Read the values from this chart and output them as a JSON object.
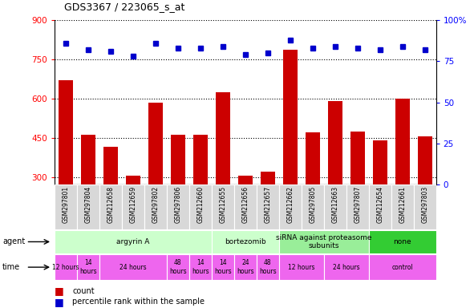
{
  "title": "GDS3367 / 223065_s_at",
  "samples": [
    "GSM297801",
    "GSM297804",
    "GSM212658",
    "GSM212659",
    "GSM297802",
    "GSM297806",
    "GSM212660",
    "GSM212655",
    "GSM212656",
    "GSM212657",
    "GSM212662",
    "GSM297805",
    "GSM212663",
    "GSM297807",
    "GSM212654",
    "GSM212661",
    "GSM297803"
  ],
  "counts": [
    670,
    460,
    415,
    305,
    585,
    460,
    460,
    625,
    305,
    320,
    785,
    470,
    590,
    475,
    440,
    600,
    455
  ],
  "percentiles": [
    86,
    82,
    81,
    78,
    86,
    83,
    83,
    84,
    79,
    80,
    88,
    83,
    84,
    83,
    82,
    84,
    82
  ],
  "ylim_left": [
    270,
    900
  ],
  "ylim_right": [
    0,
    100
  ],
  "yticks_left": [
    300,
    450,
    600,
    750,
    900
  ],
  "yticks_right": [
    0,
    25,
    50,
    75,
    100
  ],
  "bar_color": "#cc0000",
  "dot_color": "#0000cc",
  "background_color": "#ffffff",
  "agent_groups": [
    {
      "label": "argyrin A",
      "start": 0,
      "end": 7,
      "color": "#ccffcc"
    },
    {
      "label": "bortezomib",
      "start": 7,
      "end": 10,
      "color": "#ccffcc"
    },
    {
      "label": "siRNA against proteasome\nsubunits",
      "start": 10,
      "end": 14,
      "color": "#99ee99"
    },
    {
      "label": "none",
      "start": 14,
      "end": 17,
      "color": "#33cc33"
    }
  ],
  "time_groups": [
    {
      "label": "12 hours",
      "start": 0,
      "end": 1
    },
    {
      "label": "14\nhours",
      "start": 1,
      "end": 2
    },
    {
      "label": "24 hours",
      "start": 2,
      "end": 5
    },
    {
      "label": "48\nhours",
      "start": 5,
      "end": 6
    },
    {
      "label": "14\nhours",
      "start": 6,
      "end": 7
    },
    {
      "label": "14\nhours",
      "start": 7,
      "end": 8
    },
    {
      "label": "24\nhours",
      "start": 8,
      "end": 9
    },
    {
      "label": "48\nhours",
      "start": 9,
      "end": 10
    },
    {
      "label": "12 hours",
      "start": 10,
      "end": 12
    },
    {
      "label": "24 hours",
      "start": 12,
      "end": 14
    },
    {
      "label": "control",
      "start": 14,
      "end": 17
    }
  ],
  "time_color": "#ee66ee",
  "cell_color": "#d8d8d8"
}
